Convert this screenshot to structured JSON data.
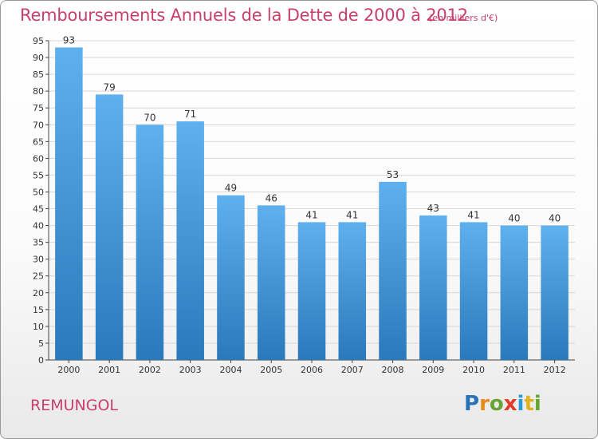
{
  "header": {
    "title": "Remboursements Annuels de la Dette de 2000 à 2012",
    "subtitle": "(en milliers d'€)"
  },
  "footer": {
    "place": "REMUNGOL",
    "logo": "Proxiti"
  },
  "colors": {
    "title": "#c8406a",
    "bar_top": "#5fb0ee",
    "bar_bottom": "#2a79bb"
  },
  "chart_data": {
    "type": "bar",
    "categories": [
      "2000",
      "2001",
      "2002",
      "2003",
      "2004",
      "2005",
      "2006",
      "2007",
      "2008",
      "2009",
      "2010",
      "2011",
      "2012"
    ],
    "values": [
      93,
      79,
      70,
      71,
      49,
      46,
      41,
      41,
      53,
      43,
      41,
      40,
      40
    ],
    "title": "Remboursements Annuels de la Dette de 2000 à 2012",
    "subtitle": "(en milliers d'€)",
    "xlabel": "",
    "ylabel": "",
    "ylim": [
      0,
      95
    ],
    "ytick_step": 5,
    "grid": true,
    "legend": "none"
  }
}
